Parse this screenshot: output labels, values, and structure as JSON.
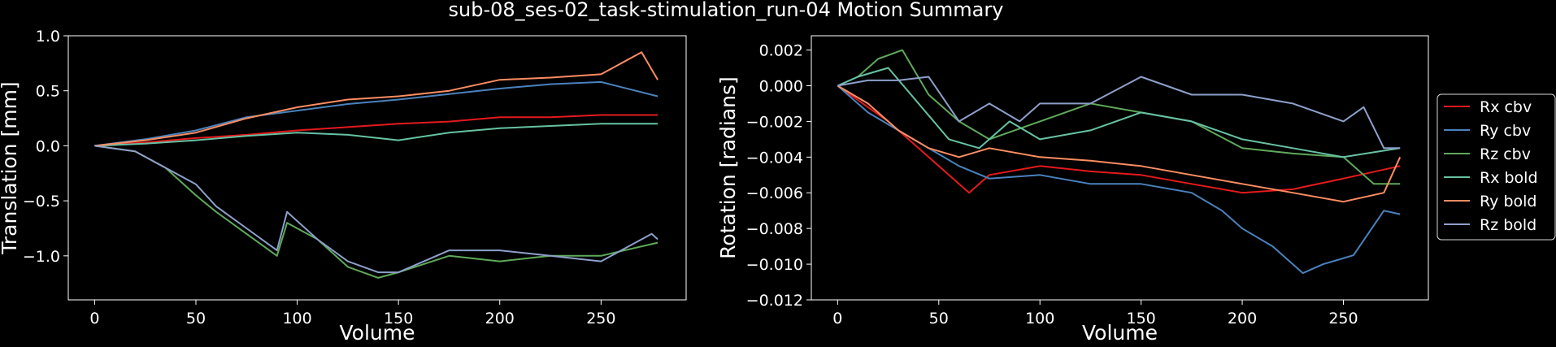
{
  "figure_title": "sub-08_ses-02_task-stimulation_run-04 Motion Summary",
  "colors": {
    "Rx cbv": "#e41a1c",
    "Ry cbv": "#4a82bd",
    "Rz cbv": "#5fa95a",
    "Rx bold": "#66c2a5",
    "Ry bold": "#fc8d62",
    "Rz bold": "#8da0cb"
  },
  "chart_data": [
    {
      "type": "line",
      "xlabel": "Volume",
      "ylabel": "Translation [mm]",
      "xlim": [
        -13,
        292
      ],
      "ylim": [
        -1.4,
        1.0
      ],
      "xticks": [
        0,
        50,
        100,
        150,
        200,
        250
      ],
      "yticks": [
        -1.0,
        -0.5,
        0.0,
        0.5,
        1.0
      ],
      "ytick_labels": [
        "−1.0",
        "−0.5",
        "0.0",
        "0.5",
        "1.0"
      ],
      "grid": false,
      "legend": false,
      "series": [
        {
          "color": "#e41a1c",
          "x": [
            0,
            25,
            50,
            75,
            100,
            125,
            150,
            175,
            200,
            225,
            250,
            278
          ],
          "y": [
            0.0,
            0.03,
            0.07,
            0.1,
            0.14,
            0.17,
            0.2,
            0.22,
            0.26,
            0.26,
            0.28,
            0.28
          ]
        },
        {
          "color": "#4a82bd",
          "x": [
            0,
            25,
            50,
            75,
            100,
            125,
            150,
            175,
            200,
            225,
            250,
            278
          ],
          "y": [
            0.0,
            0.06,
            0.14,
            0.26,
            0.32,
            0.38,
            0.42,
            0.47,
            0.52,
            0.56,
            0.58,
            0.45
          ]
        },
        {
          "color": "#5fa95a",
          "x": [
            0,
            20,
            35,
            50,
            60,
            75,
            90,
            95,
            110,
            125,
            140,
            150,
            175,
            200,
            225,
            250,
            278
          ],
          "y": [
            0.0,
            -0.05,
            -0.2,
            -0.45,
            -0.6,
            -0.8,
            -1.0,
            -0.7,
            -0.85,
            -1.1,
            -1.2,
            -1.15,
            -1.0,
            -1.05,
            -1.0,
            -1.0,
            -0.88
          ]
        },
        {
          "color": "#66c2a5",
          "x": [
            0,
            25,
            50,
            75,
            100,
            125,
            150,
            175,
            200,
            225,
            250,
            278
          ],
          "y": [
            0.0,
            0.02,
            0.05,
            0.09,
            0.12,
            0.1,
            0.05,
            0.12,
            0.16,
            0.18,
            0.2,
            0.2
          ]
        },
        {
          "color": "#fc8d62",
          "x": [
            0,
            25,
            50,
            75,
            100,
            125,
            150,
            175,
            200,
            225,
            250,
            270,
            278
          ],
          "y": [
            0.0,
            0.05,
            0.12,
            0.25,
            0.35,
            0.42,
            0.45,
            0.5,
            0.6,
            0.62,
            0.65,
            0.85,
            0.6
          ]
        },
        {
          "color": "#8da0cb",
          "x": [
            0,
            20,
            35,
            50,
            60,
            75,
            90,
            95,
            110,
            125,
            140,
            150,
            175,
            200,
            225,
            250,
            275,
            278
          ],
          "y": [
            0.0,
            -0.05,
            -0.2,
            -0.35,
            -0.55,
            -0.75,
            -0.95,
            -0.6,
            -0.85,
            -1.05,
            -1.15,
            -1.15,
            -0.95,
            -0.95,
            -1.0,
            -1.05,
            -0.8,
            -0.85
          ]
        }
      ]
    },
    {
      "type": "line",
      "xlabel": "Volume",
      "ylabel": "Rotation [radians]",
      "xlim": [
        -13,
        292
      ],
      "ylim": [
        -0.012,
        0.0028
      ],
      "xticks": [
        0,
        50,
        100,
        150,
        200,
        250
      ],
      "yticks": [
        -0.012,
        -0.01,
        -0.008,
        -0.006,
        -0.004,
        -0.002,
        0.0,
        0.002
      ],
      "ytick_labels": [
        "−0.012",
        "−0.010",
        "−0.008",
        "−0.006",
        "−0.004",
        "−0.002",
        "0.000",
        "0.002"
      ],
      "grid": false,
      "legend": "center-right",
      "series": [
        {
          "name": "Rx cbv",
          "color": "#e41a1c",
          "x": [
            0,
            10,
            25,
            40,
            55,
            65,
            75,
            100,
            125,
            150,
            175,
            200,
            225,
            250,
            278
          ],
          "y": [
            0.0,
            -0.0008,
            -0.002,
            -0.0035,
            -0.005,
            -0.006,
            -0.005,
            -0.0045,
            -0.0048,
            -0.005,
            -0.0055,
            -0.006,
            -0.0058,
            -0.0052,
            -0.0045
          ]
        },
        {
          "name": "Ry cbv",
          "color": "#4a82bd",
          "x": [
            0,
            15,
            30,
            45,
            60,
            75,
            100,
            125,
            150,
            175,
            190,
            200,
            215,
            230,
            240,
            255,
            270,
            278
          ],
          "y": [
            0.0,
            -0.0015,
            -0.0025,
            -0.0035,
            -0.0045,
            -0.0052,
            -0.005,
            -0.0055,
            -0.0055,
            -0.006,
            -0.007,
            -0.008,
            -0.009,
            -0.0105,
            -0.01,
            -0.0095,
            -0.007,
            -0.0072
          ]
        },
        {
          "name": "Rz cbv",
          "color": "#5fa95a",
          "x": [
            0,
            10,
            20,
            32,
            45,
            60,
            75,
            100,
            125,
            150,
            175,
            200,
            225,
            250,
            265,
            278
          ],
          "y": [
            0.0,
            0.0005,
            0.0015,
            0.002,
            -0.0005,
            -0.002,
            -0.003,
            -0.002,
            -0.001,
            -0.0015,
            -0.002,
            -0.0035,
            -0.0038,
            -0.004,
            -0.0055,
            -0.0055
          ]
        },
        {
          "name": "Rx bold",
          "color": "#66c2a5",
          "x": [
            0,
            10,
            25,
            40,
            55,
            70,
            85,
            100,
            125,
            150,
            175,
            200,
            225,
            250,
            278
          ],
          "y": [
            0.0,
            0.0005,
            0.001,
            -0.001,
            -0.003,
            -0.0035,
            -0.002,
            -0.003,
            -0.0025,
            -0.0015,
            -0.002,
            -0.003,
            -0.0035,
            -0.004,
            -0.0035
          ]
        },
        {
          "name": "Ry bold",
          "color": "#fc8d62",
          "x": [
            0,
            15,
            30,
            45,
            60,
            75,
            100,
            125,
            150,
            175,
            200,
            225,
            250,
            270,
            278
          ],
          "y": [
            0.0,
            -0.001,
            -0.0025,
            -0.0035,
            -0.004,
            -0.0035,
            -0.004,
            -0.0042,
            -0.0045,
            -0.005,
            -0.0055,
            -0.006,
            -0.0065,
            -0.006,
            -0.004
          ]
        },
        {
          "name": "Rz bold",
          "color": "#8da0cb",
          "x": [
            0,
            15,
            30,
            45,
            60,
            75,
            90,
            100,
            125,
            150,
            175,
            200,
            225,
            250,
            260,
            270,
            278
          ],
          "y": [
            0.0,
            0.0003,
            0.0003,
            0.0005,
            -0.002,
            -0.001,
            -0.002,
            -0.001,
            -0.001,
            0.0005,
            -0.0005,
            -0.0005,
            -0.001,
            -0.002,
            -0.0012,
            -0.0035,
            -0.0035
          ]
        }
      ]
    }
  ]
}
